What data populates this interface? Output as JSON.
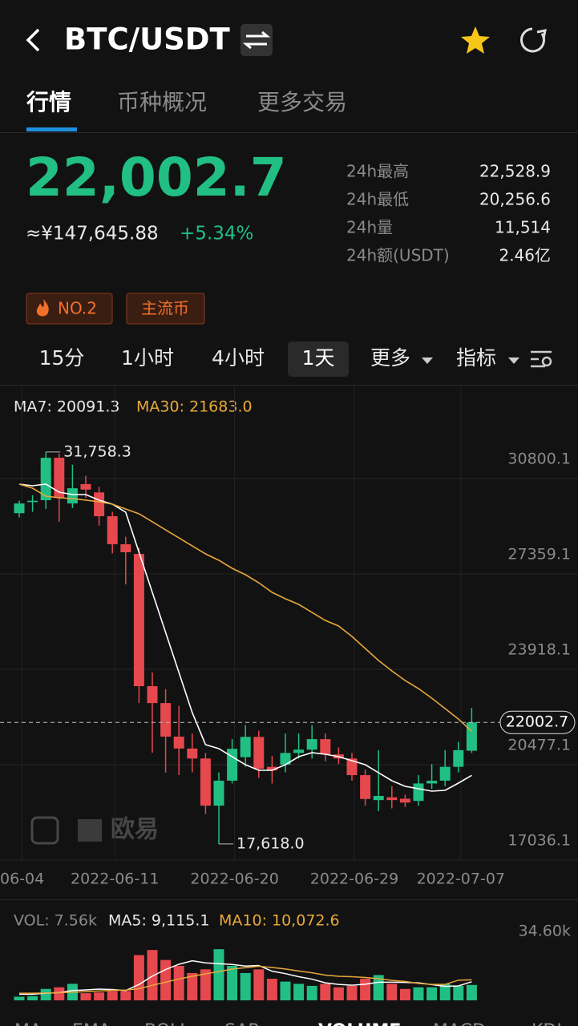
{
  "header": {
    "title": "BTC/USDT"
  },
  "tabs": [
    "行情",
    "币种概况",
    "更多交易"
  ],
  "price": {
    "last": "22,002.7",
    "cny": "≈¥147,645.88",
    "change": "+5.34%"
  },
  "stats": [
    {
      "label": "24h最高",
      "value": "22,528.9"
    },
    {
      "label": "24h最低",
      "value": "20,256.6"
    },
    {
      "label": "24h量",
      "value": "11,514"
    },
    {
      "label": "24h额(USDT)",
      "value": "2.46亿"
    }
  ],
  "tags": [
    "NO.2",
    "主流币"
  ],
  "intervals": [
    "15分",
    "1小时",
    "4小时",
    "1天",
    "更多",
    "指标"
  ],
  "ma_legend": [
    "MA7: 20091.3",
    "MA30: 21683.0"
  ],
  "watermark": "欧易",
  "vol_legend": [
    "VOL: 7.56k",
    "MA5: 9,115.1",
    "MA10: 10,072.6"
  ],
  "indicator_tabs": [
    "MA",
    "EMA",
    "BOLL",
    "SAR",
    "VOLUME",
    "MACD",
    "KDJ"
  ],
  "chart_data": [
    {
      "type": "candlestick",
      "up_color": "#21bf84",
      "down_color": "#e5484d",
      "categories": [
        "06-04",
        null,
        null,
        null,
        null,
        null,
        null,
        "2022-06-11",
        null,
        null,
        null,
        null,
        null,
        null,
        null,
        null,
        "2022-06-20",
        null,
        null,
        null,
        null,
        null,
        null,
        null,
        null,
        "2022-06-29",
        null,
        null,
        null,
        null,
        null,
        null,
        null,
        "2022-07-07",
        null
      ],
      "open": [
        29550,
        29950,
        30020,
        31550,
        29900,
        30600,
        30300,
        29440,
        28430,
        28080,
        23310,
        22700,
        21490,
        21060,
        20700,
        19000,
        19900,
        20750,
        21480,
        20400,
        20480,
        20900,
        21020,
        21400,
        20850,
        20700,
        20100,
        19200,
        19300,
        19250,
        19170,
        19800,
        19900,
        20400,
        20980
      ],
      "high": [
        30000,
        30200,
        31758.3,
        31700,
        31300,
        30900,
        30500,
        29600,
        28700,
        28300,
        23800,
        23200,
        22600,
        21600,
        20900,
        20200,
        21400,
        21900,
        21700,
        20800,
        21600,
        21600,
        21900,
        21600,
        21100,
        20900,
        20300,
        21000,
        19700,
        19400,
        20100,
        20500,
        21000,
        21300,
        22528.9
      ],
      "low": [
        29400,
        29600,
        29700,
        29240,
        29730,
        30100,
        29100,
        28100,
        26980,
        22700,
        20910,
        20190,
        20100,
        20200,
        18700,
        17618.0,
        19800,
        20400,
        20000,
        19800,
        20200,
        20700,
        20700,
        20600,
        20500,
        19900,
        19000,
        18800,
        18900,
        18950,
        19000,
        19600,
        19700,
        20200,
        20900
      ],
      "close": [
        29900,
        30000,
        31550,
        30100,
        30450,
        30400,
        29440,
        28430,
        28140,
        23310,
        22700,
        21490,
        21060,
        20700,
        19000,
        19900,
        21050,
        21480,
        20330,
        20270,
        20900,
        21020,
        21400,
        20850,
        20700,
        20100,
        19240,
        19350,
        19200,
        19110,
        19800,
        19900,
        20400,
        21000,
        22002.7
      ],
      "lines": [
        {
          "color": "#ffffff",
          "values": [
            30598,
            30540,
            30598,
            30308,
            30222,
            30222,
            30020,
            29875,
            29586,
            28140,
            26694,
            25248,
            23803,
            22357,
            21200,
            21056,
            20766,
            20477,
            20275,
            20275,
            20477,
            20766,
            20911,
            20853,
            20766,
            20622,
            20477,
            20188,
            19899,
            19696,
            19609,
            19523,
            19552,
            19812,
            20091.3
          ]
        },
        {
          "color": "#e8a83a",
          "values": [
            30598,
            30453,
            30164,
            30106,
            30077,
            30020,
            29962,
            29875,
            29701,
            29528,
            29239,
            28949,
            28660,
            28371,
            28082,
            27851,
            27562,
            27330,
            27041,
            26694,
            26463,
            26260,
            25971,
            25682,
            25480,
            25104,
            24670,
            24236,
            23860,
            23513,
            23224,
            22877,
            22501,
            22125,
            21683.0
          ]
        }
      ],
      "ylim": [
        17036.1,
        34125.5
      ],
      "yticks": [
        30800.1,
        27359.1,
        23918.1,
        20477.1,
        17036.1
      ],
      "current": 22002.7,
      "annotations": [
        {
          "label": "31,758.3",
          "value": 31758.3
        },
        {
          "label": "17,618.0",
          "value": 17618.0
        }
      ]
    },
    {
      "type": "bar",
      "values": [
        1800,
        2100,
        5600,
        6400,
        8100,
        3500,
        3900,
        4600,
        4600,
        22200,
        24700,
        19800,
        16900,
        13400,
        15200,
        25100,
        16900,
        13400,
        15200,
        10600,
        9200,
        8100,
        7100,
        8100,
        6400,
        7100,
        10600,
        12400,
        8100,
        5600,
        6400,
        6400,
        8100,
        7100,
        7560
      ],
      "lines": [
        {
          "color": "#ffffff",
          "values": [
            3000,
            3000,
            3500,
            3800,
            4800,
            5100,
            5500,
            5300,
            4800,
            7800,
            11900,
            15100,
            17700,
            19400,
            18400,
            18000,
            17600,
            16800,
            17100,
            14300,
            13100,
            11600,
            10400,
            8600,
            7800,
            7400,
            7900,
            8900,
            8900,
            8800,
            8600,
            7700,
            6900,
            7100,
            9115.1
          ]
        },
        {
          "color": "#e8a83a",
          "values": [
            3500,
            3500,
            3600,
            3800,
            4000,
            4300,
            4600,
            4900,
            5000,
            5700,
            7400,
            8900,
            10500,
            11800,
            13000,
            14100,
            15400,
            16000,
            16700,
            16100,
            15400,
            14400,
            13500,
            12400,
            11800,
            11600,
            11200,
            10600,
            9800,
            9300,
            8300,
            7800,
            7800,
            9900,
            10072.6
          ]
        }
      ],
      "ylim": [
        0,
        34600
      ],
      "yticks": [
        {
          "value": 34600,
          "label": "34.60k"
        }
      ]
    }
  ]
}
